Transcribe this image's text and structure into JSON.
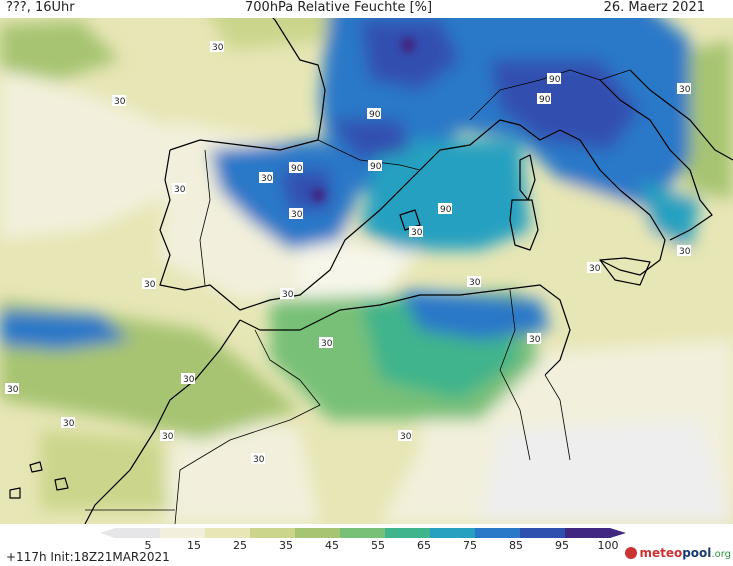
{
  "header": {
    "left": "???, 16Uhr",
    "title": "700hPa Relative Feuchte [%]",
    "date": "26. Maerz 2021"
  },
  "map": {
    "contour_labels": [
      "30",
      "30",
      "30",
      "90",
      "90",
      "90",
      "90",
      "90",
      "90",
      "30",
      "30",
      "30",
      "30",
      "30",
      "30",
      "30",
      "30",
      "30",
      "30",
      "30",
      "30",
      "30",
      "30",
      "30",
      "30",
      "30"
    ]
  },
  "colorbar": {
    "labels": [
      "5",
      "15",
      "25",
      "35",
      "45",
      "55",
      "65",
      "75",
      "85",
      "95",
      "100"
    ],
    "colors": [
      "#e6e6e8",
      "#f2f0dc",
      "#e7e6b6",
      "#cbd68c",
      "#a7c472",
      "#78c078",
      "#40b48c",
      "#28a0c0",
      "#2a78c8",
      "#3050b0",
      "#402880"
    ]
  },
  "footer": {
    "init": "+117h  Init:18Z21MAR2021",
    "logo_part1": "meteo",
    "logo_part2": "pool",
    "logo_part3": ".org"
  }
}
